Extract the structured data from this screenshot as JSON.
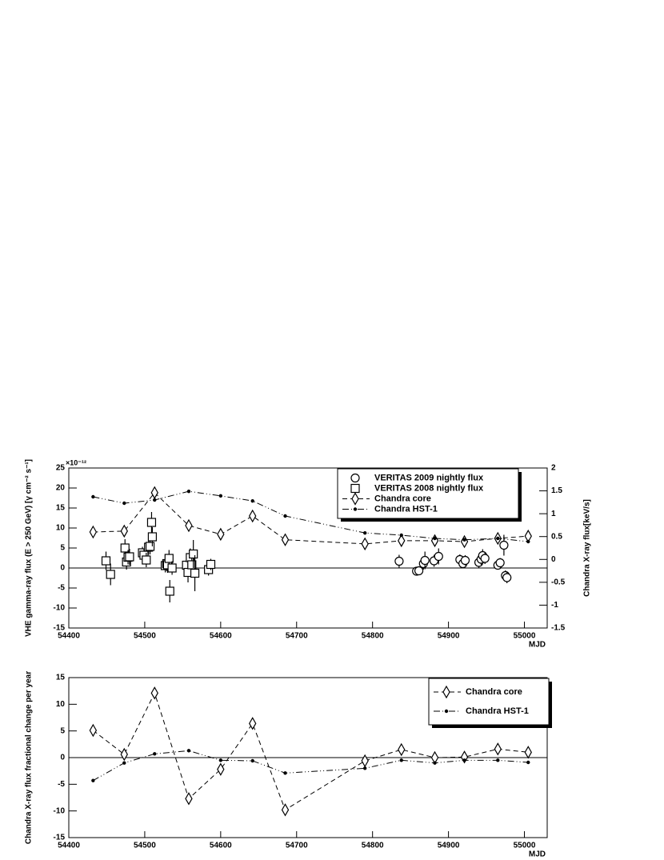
{
  "chart_data": [
    {
      "type": "line",
      "y_label": "VHE gamma-ray flux (E > 250 GeV) [γ cm⁻² s⁻¹]",
      "y_exponent": "×10⁻¹²",
      "y2_label": "Chandra X-ray flux[keV/s]",
      "x_label": "MJD",
      "xlim": [
        54400,
        55030
      ],
      "xticks": [
        54400,
        54500,
        54600,
        54700,
        54800,
        54900,
        55000
      ],
      "ylim": [
        -15,
        25
      ],
      "yticks": [
        -15,
        -10,
        -5,
        0,
        5,
        10,
        15,
        20,
        25
      ],
      "y2lim": [
        -1.5,
        2
      ],
      "y2ticks": [
        -1.5,
        -1,
        -0.5,
        0,
        0.5,
        1,
        1.5,
        2
      ],
      "zero_line": true,
      "legend": "upper right",
      "series": [
        {
          "name": "VERITAS 2009 nightly flux",
          "color": "#000000",
          "marker": "circle",
          "line_style": "none",
          "x": [
            54835,
            54858,
            54861,
            54867,
            54869,
            54881,
            54887,
            54915,
            54919,
            54922,
            54940,
            54943,
            54945,
            54948,
            54965,
            54968,
            54973,
            54975,
            54977
          ],
          "values": [
            1.7,
            -0.8,
            -0.7,
            1.1,
            1.9,
            1.8,
            2.9,
            2.1,
            1.1,
            1.9,
            1.4,
            2.2,
            3.1,
            2.4,
            0.7,
            1.3,
            5.7,
            -1.9,
            -2.4
          ],
          "errors": [
            1.6,
            0.8,
            0.8,
            1.5,
            2.2,
            1.5,
            2.0,
            1.3,
            1.2,
            1.3,
            1.3,
            1.4,
            1.6,
            1.4,
            1.1,
            1.2,
            2.6,
            1.3,
            1.4
          ]
        },
        {
          "name": "VERITAS 2008 nightly flux",
          "color": "#000000",
          "marker": "square",
          "line_style": "none",
          "x": [
            54449,
            54455,
            54474,
            54476,
            54478,
            54480,
            54497,
            54499,
            54502,
            54505,
            54507,
            54509,
            54510,
            54527,
            54529,
            54530,
            54532,
            54533,
            54536,
            54555,
            54557,
            54560,
            54562,
            54564,
            54566,
            54584,
            54587
          ],
          "values": [
            1.8,
            -1.6,
            5.0,
            1.5,
            2.7,
            2.8,
            3.8,
            3.2,
            2.0,
            5.2,
            5.4,
            11.4,
            7.8,
            0.6,
            1.1,
            0.8,
            2.4,
            -5.8,
            0.0,
            0.7,
            -1.1,
            2.6,
            0.8,
            3.5,
            -1.3,
            -0.4,
            0.9
          ],
          "errors": [
            2.3,
            2.7,
            2.2,
            1.9,
            1.8,
            2.0,
            1.5,
            1.5,
            1.8,
            1.9,
            2.0,
            2.6,
            2.4,
            1.7,
            1.9,
            2.0,
            2.1,
            2.8,
            1.7,
            2.0,
            2.5,
            2.3,
            2.0,
            3.5,
            4.5,
            1.5,
            1.4
          ]
        },
        {
          "name": "Chandra core",
          "color": "#000000",
          "marker": "diamond",
          "line_style": "dashed",
          "axis": "y2",
          "x": [
            54432,
            54473,
            54513,
            54558,
            54600,
            54642,
            54685,
            54790,
            54838,
            54882,
            54921,
            54965,
            55005
          ],
          "values": [
            0.6,
            0.62,
            1.46,
            0.74,
            0.55,
            0.95,
            0.43,
            0.34,
            0.41,
            0.41,
            0.39,
            0.46,
            0.51
          ]
        },
        {
          "name": "Chandra HST-1",
          "color": "#000000",
          "marker": "dot",
          "line_style": "dash-dot-dot",
          "axis": "y2",
          "x": [
            54432,
            54473,
            54513,
            54558,
            54600,
            54642,
            54685,
            54790,
            54838,
            54882,
            54921,
            54965,
            55005
          ],
          "values": [
            1.37,
            1.23,
            1.3,
            1.49,
            1.39,
            1.28,
            0.95,
            0.58,
            0.53,
            0.46,
            0.43,
            0.46,
            0.39
          ]
        }
      ]
    },
    {
      "type": "line",
      "y_label": "Chandra X-ray flux fractional change per year",
      "x_label": "MJD",
      "xlim": [
        54400,
        55030
      ],
      "xticks": [
        54400,
        54500,
        54600,
        54700,
        54800,
        54900,
        55000
      ],
      "ylim": [
        -15,
        15
      ],
      "yticks": [
        -15,
        -10,
        -5,
        0,
        5,
        10,
        15
      ],
      "zero_line": true,
      "legend": "upper right",
      "series": [
        {
          "name": "Chandra core",
          "color": "#000000",
          "marker": "diamond",
          "line_style": "dashed",
          "x": [
            54432,
            54473,
            54513,
            54558,
            54600,
            54642,
            54685,
            54790,
            54838,
            54882,
            54921,
            54965,
            55005
          ],
          "values": [
            5.1,
            0.6,
            12.1,
            -7.7,
            -2.2,
            6.4,
            -9.8,
            -0.6,
            1.5,
            0,
            0.1,
            1.6,
            1.0
          ]
        },
        {
          "name": "Chandra HST-1",
          "color": "#000000",
          "marker": "dot",
          "line_style": "dash-dot-dot",
          "x": [
            54432,
            54473,
            54513,
            54558,
            54600,
            54642,
            54685,
            54790,
            54838,
            54882,
            54921,
            54965,
            55005
          ],
          "values": [
            -4.3,
            -1.0,
            0.7,
            1.3,
            -0.5,
            -0.6,
            -2.9,
            -2.0,
            -0.5,
            -1.0,
            -0.5,
            -0.5,
            -0.9
          ]
        }
      ]
    }
  ]
}
